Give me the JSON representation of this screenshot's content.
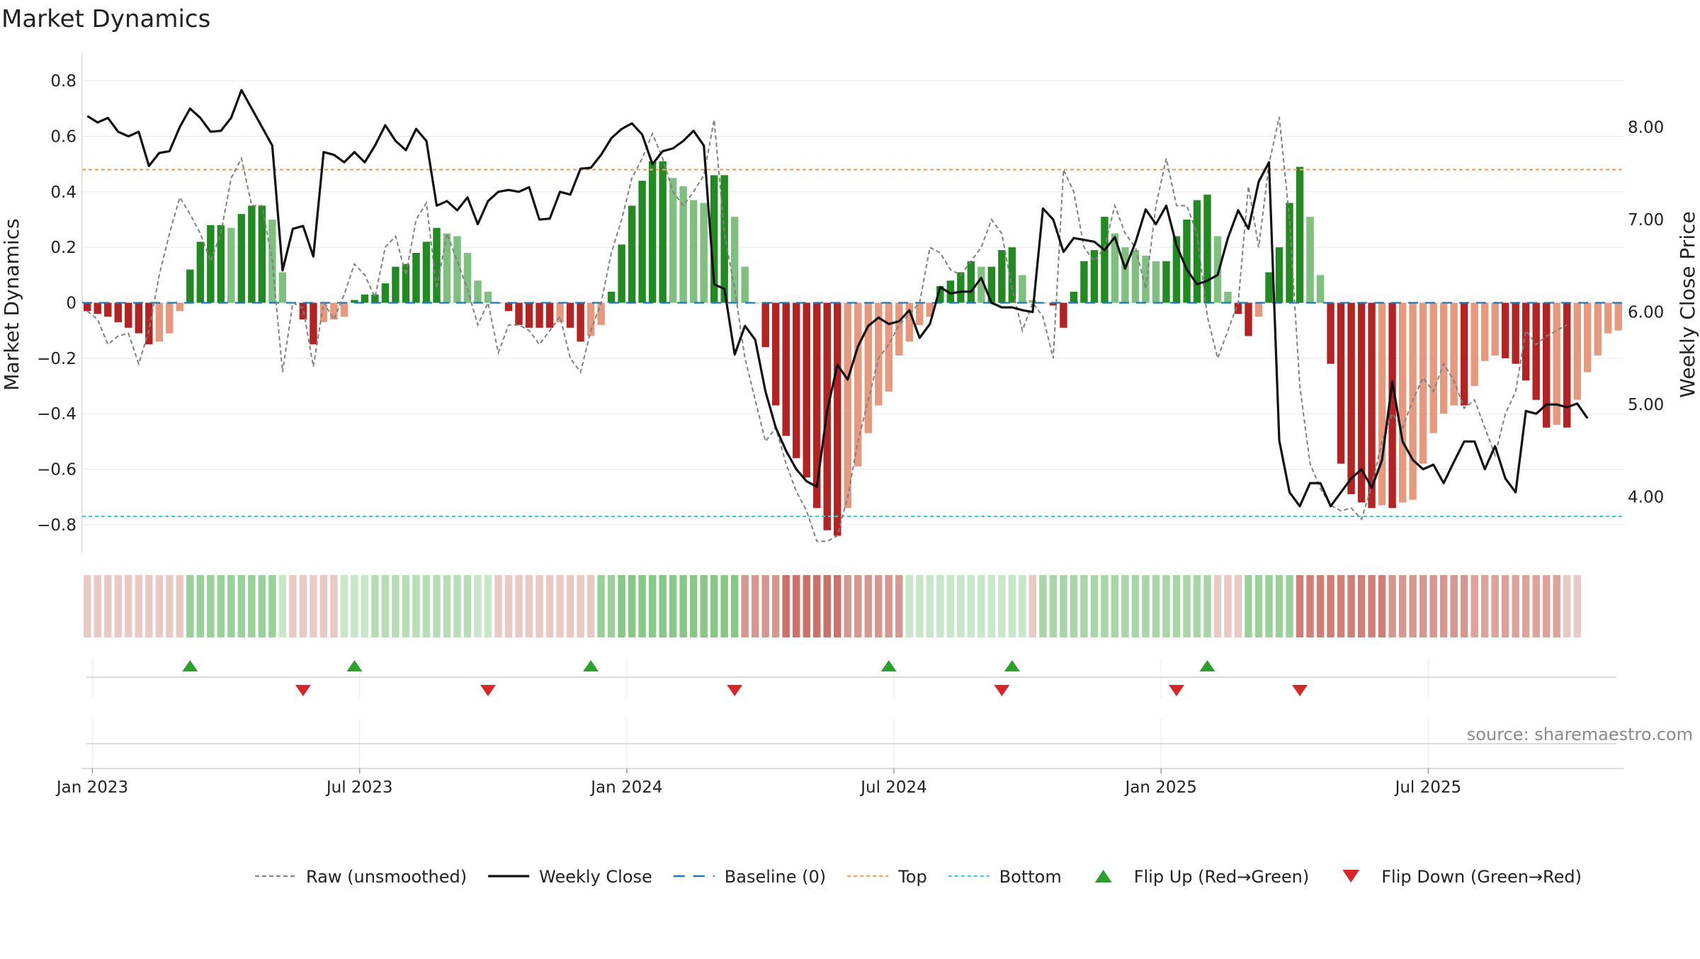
{
  "chart_data": {
    "type": "bar",
    "title": "Market Dynamics",
    "ylabel_left": "Market Dynamics",
    "ylabel_right": "Weekly Close Price",
    "ylim_left": [
      -0.9,
      0.9
    ],
    "ylim_right": [
      3.4,
      8.8
    ],
    "yticks_left": [
      "0.8",
      "0.6",
      "0.4",
      "0.2",
      "0",
      "−0.2",
      "−0.4",
      "−0.6",
      "−0.8"
    ],
    "yticks_left_values": [
      0.8,
      0.6,
      0.4,
      0.2,
      0,
      -0.2,
      -0.4,
      -0.6,
      -0.8
    ],
    "yticks_right": [
      "8.00",
      "7.00",
      "6.00",
      "5.00",
      "4.00"
    ],
    "yticks_right_values": [
      8,
      7,
      6,
      5,
      4
    ],
    "xticks": [
      "Jan 2023",
      "Jul 2023",
      "Jan 2024",
      "Jul 2024",
      "Jan 2025",
      "Jul 2025"
    ],
    "xticks_week_index": [
      0.5,
      26.5,
      52.5,
      78.5,
      104.5,
      130.5
    ],
    "top_threshold": 0.48,
    "bottom_threshold": -0.77,
    "grid": true,
    "legend_position": "bottom-center",
    "source": "source: sharemaestro.com",
    "colors": {
      "bar_green_strong": "#238a23",
      "bar_green_weak": "#7fbf7f",
      "bar_red_strong": "#b22424",
      "bar_red_weak": "#e59a80",
      "raw": "#808080",
      "close": "#111111",
      "baseline": "#1f77b4",
      "top": "#f0a060",
      "bottom": "#3cc8d8",
      "flip_up": "#2ca02c",
      "flip_down": "#d62728"
    },
    "series": [
      {
        "name": "Market Dynamics",
        "values": [
          -0.03,
          -0.04,
          -0.05,
          -0.07,
          -0.09,
          -0.11,
          -0.15,
          -0.14,
          -0.11,
          -0.03,
          0.12,
          0.22,
          0.28,
          0.28,
          0.27,
          0.32,
          0.35,
          0.35,
          0.3,
          0.11,
          0.0,
          -0.06,
          -0.15,
          -0.07,
          -0.06,
          -0.05,
          0.01,
          0.03,
          0.03,
          0.07,
          0.13,
          0.14,
          0.18,
          0.22,
          0.27,
          0.25,
          0.24,
          0.18,
          0.08,
          0.04,
          0.0,
          -0.03,
          -0.08,
          -0.09,
          -0.09,
          -0.09,
          -0.07,
          -0.09,
          -0.14,
          -0.12,
          -0.08,
          0.04,
          0.21,
          0.35,
          0.44,
          0.51,
          0.51,
          0.45,
          0.42,
          0.37,
          0.36,
          0.46,
          0.46,
          0.31,
          0.13,
          0.0,
          -0.16,
          -0.37,
          -0.48,
          -0.56,
          -0.63,
          -0.74,
          -0.82,
          -0.84,
          -0.74,
          -0.59,
          -0.47,
          -0.37,
          -0.32,
          -0.19,
          -0.14,
          -0.08,
          -0.05,
          0.06,
          0.08,
          0.11,
          0.15,
          0.13,
          0.13,
          0.19,
          0.2,
          0.1,
          0.01,
          0.0,
          -0.01,
          -0.09,
          0.04,
          0.15,
          0.19,
          0.31,
          0.25,
          0.2,
          0.19,
          0.17,
          0.15,
          0.15,
          0.24,
          0.3,
          0.37,
          0.39,
          0.24,
          0.04,
          -0.04,
          -0.12,
          -0.05,
          0.11,
          0.2,
          0.36,
          0.49,
          0.31,
          0.1,
          -0.22,
          -0.58,
          -0.69,
          -0.72,
          -0.74,
          -0.73,
          -0.74,
          -0.72,
          -0.71,
          -0.58,
          -0.47,
          -0.4,
          -0.37,
          -0.37,
          -0.3,
          -0.21,
          -0.19,
          -0.2,
          -0.22,
          -0.28,
          -0.35,
          -0.45,
          -0.44,
          -0.45,
          -0.35,
          -0.25,
          -0.19,
          -0.11,
          -0.1
        ]
      },
      {
        "name": "Raw (unsmoothed)",
        "values": [
          -0.03,
          -0.06,
          -0.15,
          -0.12,
          -0.11,
          -0.22,
          -0.1,
          0.1,
          0.25,
          0.38,
          0.32,
          0.25,
          0.15,
          0.25,
          0.45,
          0.52,
          0.35,
          0.35,
          0.15,
          -0.25,
          0.0,
          -0.02,
          -0.23,
          0.0,
          -0.06,
          0.03,
          0.14,
          0.1,
          0.02,
          0.2,
          0.24,
          0.1,
          0.3,
          0.36,
          0.05,
          0.25,
          0.15,
          0.05,
          -0.08,
          0.0,
          -0.18,
          -0.08,
          -0.08,
          -0.1,
          -0.15,
          -0.1,
          -0.05,
          -0.2,
          -0.25,
          -0.1,
          0.0,
          0.18,
          0.3,
          0.45,
          0.52,
          0.61,
          0.52,
          0.4,
          0.35,
          0.4,
          0.46,
          0.66,
          0.25,
          0.05,
          -0.2,
          -0.35,
          -0.5,
          -0.45,
          -0.58,
          -0.68,
          -0.75,
          -0.86,
          -0.86,
          -0.84,
          -0.7,
          -0.5,
          -0.35,
          -0.2,
          -0.15,
          -0.08,
          -0.04,
          0.0,
          0.2,
          0.18,
          0.12,
          0.1,
          0.15,
          0.2,
          0.3,
          0.25,
          0.05,
          -0.1,
          0.0,
          -0.05,
          -0.2,
          0.48,
          0.4,
          0.2,
          0.15,
          0.2,
          0.35,
          0.25,
          0.2,
          0.05,
          0.35,
          0.52,
          0.35,
          0.35,
          0.25,
          -0.05,
          -0.2,
          -0.1,
          0.0,
          0.42,
          0.2,
          0.5,
          0.67,
          0.3,
          -0.3,
          -0.58,
          -0.67,
          -0.73,
          -0.75,
          -0.74,
          -0.78,
          -0.66,
          -0.5,
          -0.4,
          -0.45,
          -0.35,
          -0.27,
          -0.32,
          -0.22,
          -0.28,
          -0.38,
          -0.35,
          -0.45,
          -0.55,
          -0.4,
          -0.32,
          -0.1,
          -0.15,
          -0.12,
          -0.1,
          -0.08
        ]
      },
      {
        "name": "Weekly Close",
        "values": [
          8.12,
          8.05,
          8.1,
          7.95,
          7.9,
          7.95,
          7.58,
          7.72,
          7.74,
          8.0,
          8.2,
          8.1,
          7.95,
          7.96,
          8.1,
          8.4,
          8.2,
          8.0,
          7.8,
          6.45,
          6.9,
          6.93,
          6.6,
          7.73,
          7.7,
          7.62,
          7.73,
          7.62,
          7.8,
          8.02,
          7.85,
          7.75,
          7.98,
          7.85,
          7.15,
          7.2,
          7.1,
          7.24,
          6.95,
          7.2,
          7.3,
          7.32,
          7.3,
          7.35,
          7.0,
          7.01,
          7.3,
          7.27,
          7.55,
          7.56,
          7.7,
          7.88,
          7.98,
          8.04,
          7.92,
          7.6,
          7.74,
          7.77,
          7.85,
          7.96,
          7.8,
          6.3,
          6.25,
          5.54,
          5.85,
          5.7,
          5.14,
          4.75,
          4.5,
          4.3,
          4.17,
          4.11,
          4.93,
          5.43,
          5.27,
          5.63,
          5.85,
          5.94,
          5.87,
          5.9,
          6.02,
          5.72,
          5.87,
          6.27,
          6.2,
          6.22,
          6.22,
          6.37,
          6.1,
          6.05,
          6.05,
          6.02,
          6.0,
          7.12,
          7.0,
          6.65,
          6.8,
          6.78,
          6.76,
          6.67,
          6.81,
          6.47,
          6.75,
          7.11,
          6.95,
          7.15,
          6.72,
          6.46,
          6.3,
          6.34,
          6.4,
          6.8,
          7.1,
          6.9,
          7.41,
          7.62,
          4.61,
          4.05,
          3.9,
          4.15,
          4.15,
          3.9,
          4.05,
          4.2,
          4.3,
          4.1,
          4.4,
          5.25,
          4.6,
          4.4,
          4.3,
          4.35,
          4.15,
          4.38,
          4.6,
          4.6,
          4.3,
          4.55,
          4.2,
          4.05,
          4.93,
          4.9,
          5.0,
          5.0,
          4.97,
          5.01,
          4.85
        ]
      }
    ],
    "regime_strip_colors": [
      "#e9c9c4",
      "#e9c9c4",
      "#e9c9c4",
      "#e9c9c4",
      "#e9c9c4",
      "#e9c9c4",
      "#e9c9c4",
      "#e9c9c4",
      "#e9c9c4",
      "#e9c9c4",
      "#9ad09a",
      "#9ad09a",
      "#9ad09a",
      "#9ad09a",
      "#9ad09a",
      "#9ad09a",
      "#9ad09a",
      "#9ad09a",
      "#9ad09a",
      "#c8e6c8",
      "#e9c9c4",
      "#e9c9c4",
      "#e9c9c4",
      "#e9c9c4",
      "#e9c9c4",
      "#c8e6c8",
      "#c8e6c8",
      "#c8e6c8",
      "#b6ddb6",
      "#b6ddb6",
      "#b6ddb6",
      "#b6ddb6",
      "#b6ddb6",
      "#b6ddb6",
      "#b6ddb6",
      "#b6ddb6",
      "#b6ddb6",
      "#b6ddb6",
      "#c8e6c8",
      "#c8e6c8",
      "#e9c9c4",
      "#e9c9c4",
      "#e9c9c4",
      "#e9c9c4",
      "#e9c9c4",
      "#e9c9c4",
      "#e9c9c4",
      "#e9c9c4",
      "#e9c9c4",
      "#e9c9c4",
      "#9ad09a",
      "#9ad09a",
      "#87c787",
      "#87c787",
      "#87c787",
      "#87c787",
      "#87c787",
      "#87c787",
      "#87c787",
      "#87c787",
      "#87c787",
      "#87c787",
      "#87c787",
      "#87c787",
      "#d49890",
      "#d49890",
      "#d49890",
      "#d49890",
      "#c8726a",
      "#c8726a",
      "#c8726a",
      "#c8726a",
      "#c8726a",
      "#c8726a",
      "#d49890",
      "#d49890",
      "#d49890",
      "#d49890",
      "#d49890",
      "#d49890",
      "#c8e6c8",
      "#c8e6c8",
      "#c8e6c8",
      "#c8e6c8",
      "#c8e6c8",
      "#c8e6c8",
      "#c8e6c8",
      "#c8e6c8",
      "#c8e6c8",
      "#c8e6c8",
      "#c8e6c8",
      "#c8e6c8",
      "#e9c9c4",
      "#a8d6a8",
      "#a8d6a8",
      "#a8d6a8",
      "#a8d6a8",
      "#a8d6a8",
      "#a8d6a8",
      "#a8d6a8",
      "#a8d6a8",
      "#a8d6a8",
      "#a8d6a8",
      "#a8d6a8",
      "#a8d6a8",
      "#a8d6a8",
      "#a8d6a8",
      "#a8d6a8",
      "#a8d6a8",
      "#a8d6a8",
      "#e9c9c4",
      "#e9c9c4",
      "#e9c9c4",
      "#9ad09a",
      "#9ad09a",
      "#9ad09a",
      "#9ad09a",
      "#9ad09a",
      "#cf7f78",
      "#cf7f78",
      "#cf7f78",
      "#cf7f78",
      "#cf7f78",
      "#cf7f78",
      "#cf7f78",
      "#cf7f78",
      "#cf7f78",
      "#d49890",
      "#d49890",
      "#d49890",
      "#d49890",
      "#d49890",
      "#d49890",
      "#d49890",
      "#d49890",
      "#dca39c",
      "#dca39c",
      "#dca39c",
      "#dca39c",
      "#dca39c",
      "#dca39c",
      "#dca39c",
      "#dca39c",
      "#dca39c",
      "#e9c9c4",
      "#e9c9c4"
    ],
    "flip_up_week_index": [
      10,
      26,
      49,
      78,
      90,
      109
    ],
    "flip_down_week_index": [
      21,
      39,
      63,
      89,
      106,
      118
    ],
    "legend": [
      {
        "label": "Raw (unsmoothed)",
        "style": "dashed-gray"
      },
      {
        "label": "Weekly Close",
        "style": "solid-black"
      },
      {
        "label": "Baseline (0)",
        "style": "dashed-blue"
      },
      {
        "label": "Top",
        "style": "dotted-orange"
      },
      {
        "label": "Bottom",
        "style": "dotted-cyan"
      },
      {
        "label": "Flip Up (Red→Green)",
        "style": "triangle-up-green"
      },
      {
        "label": "Flip Down (Green→Red)",
        "style": "triangle-down-red"
      }
    ]
  }
}
